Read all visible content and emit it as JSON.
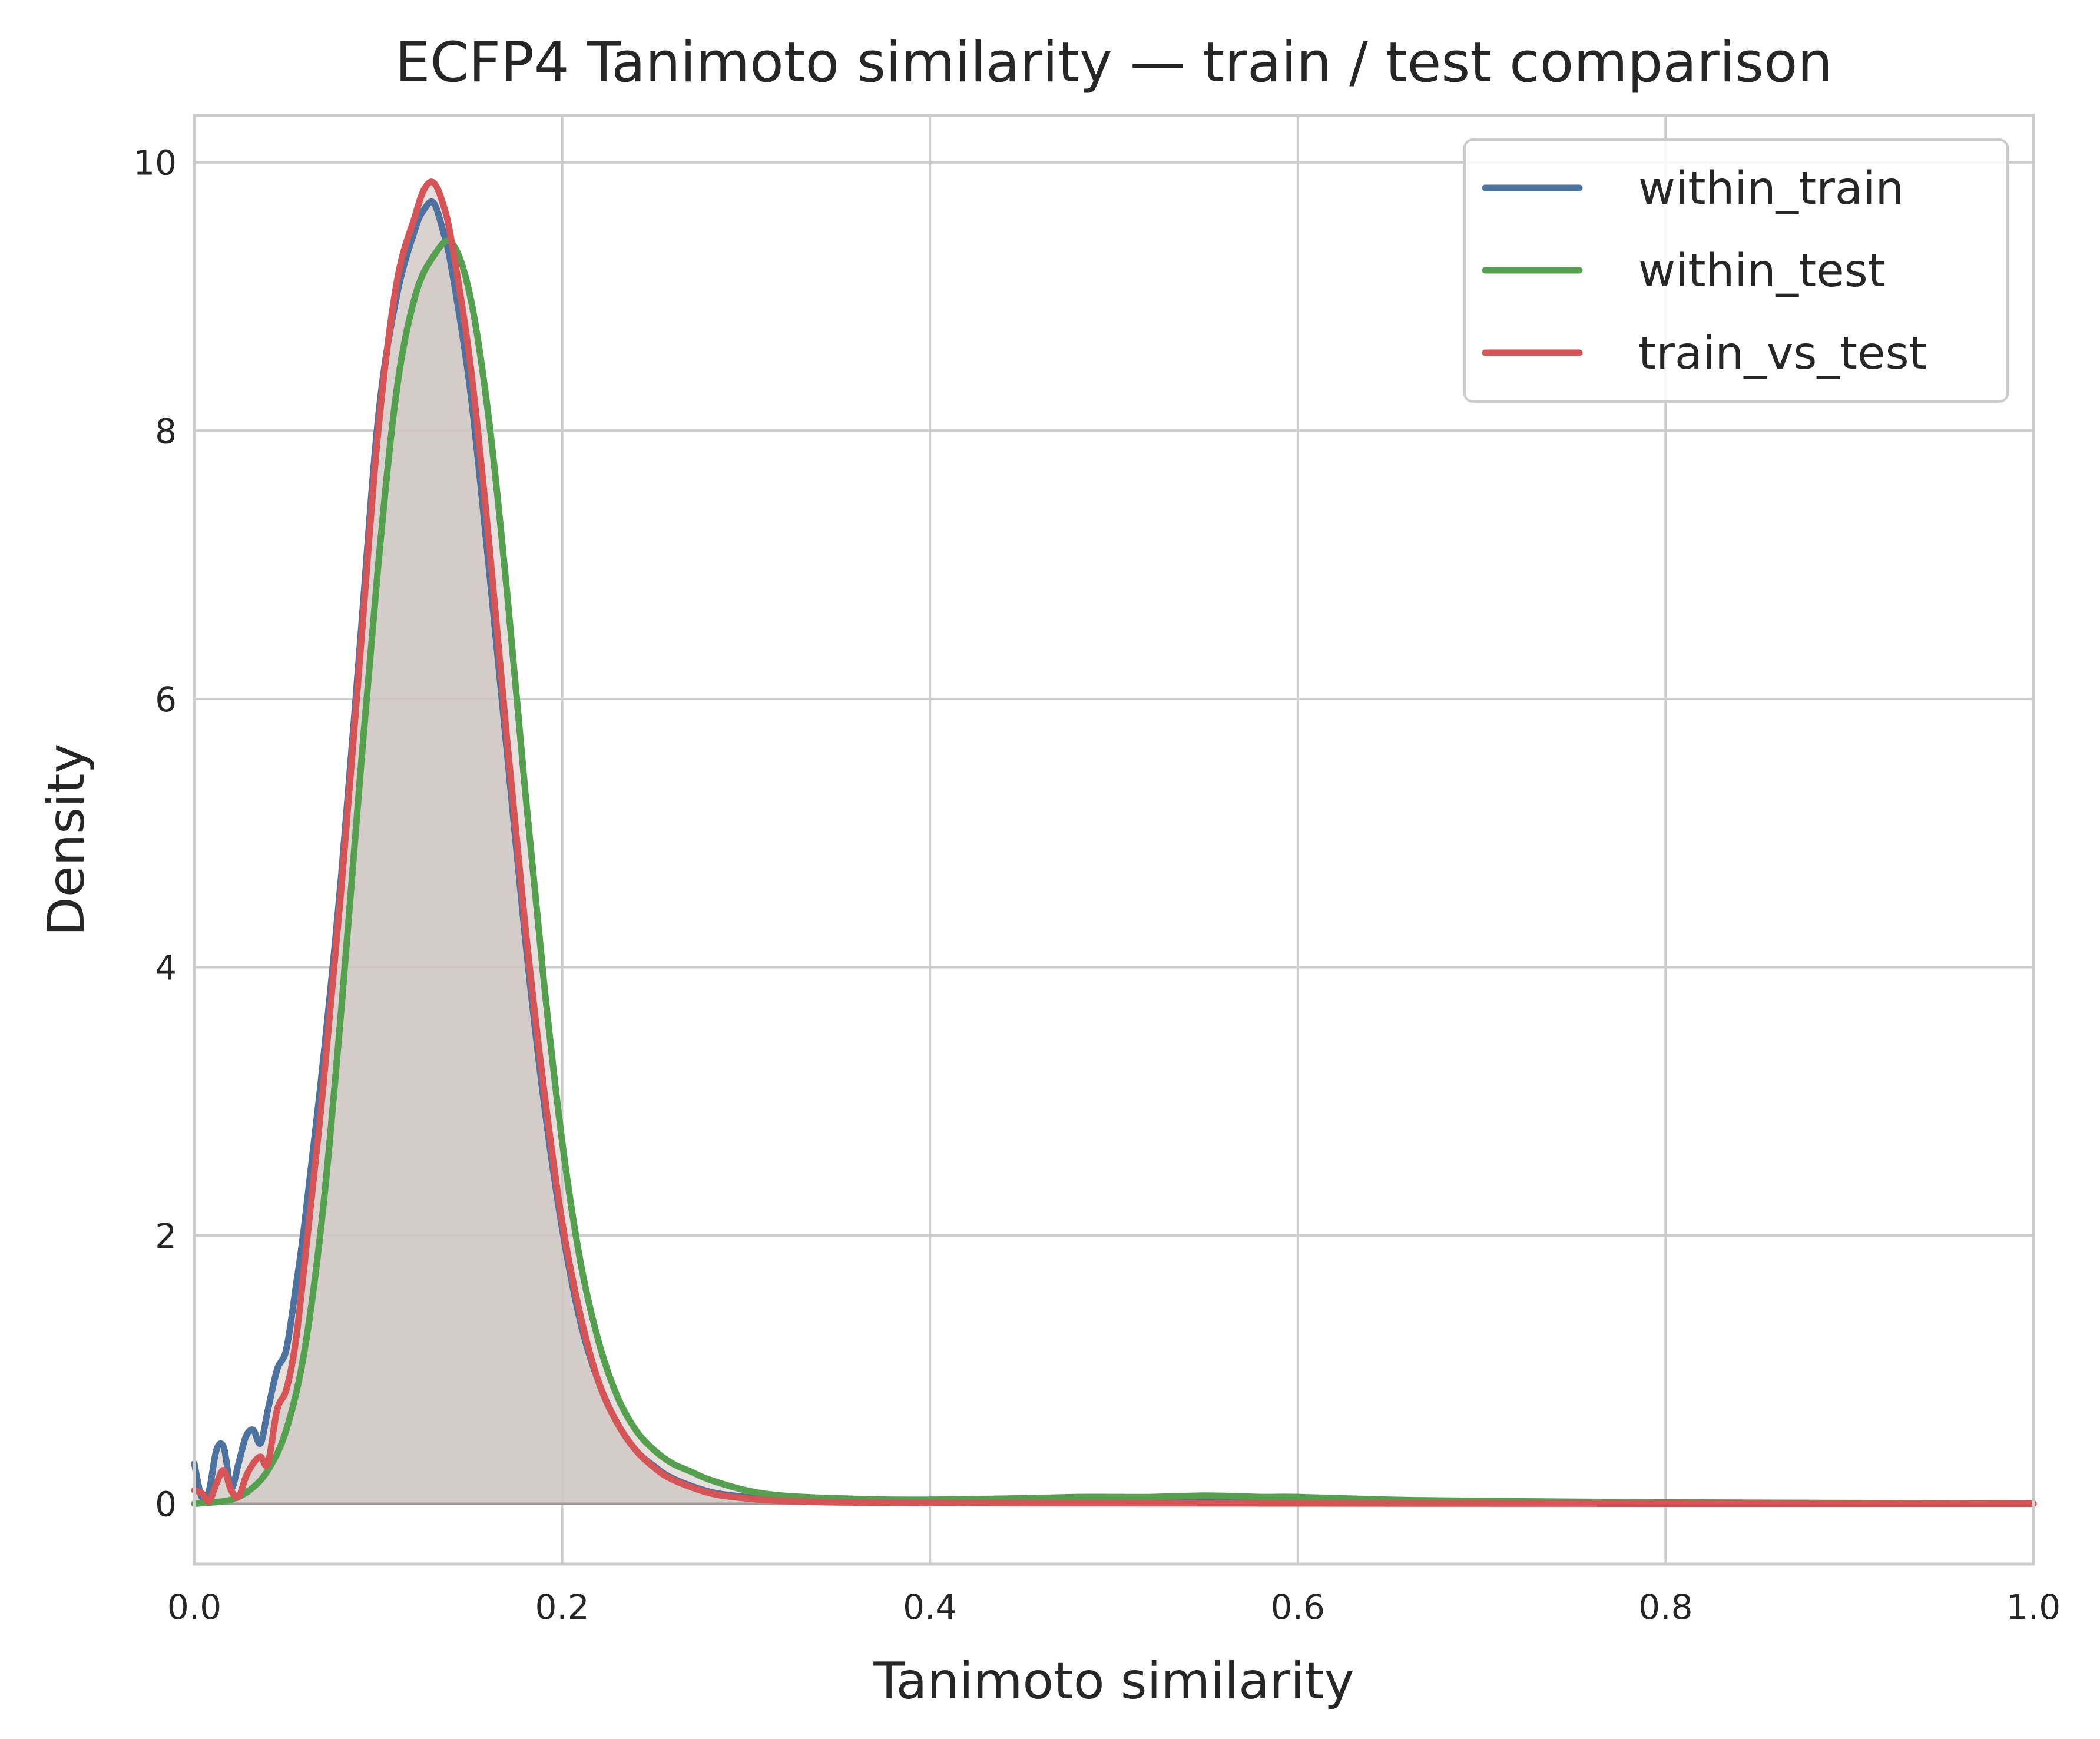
{
  "chart_data": {
    "type": "line",
    "title": "ECFP4 Tanimoto similarity — train / test comparison",
    "xlabel": "Tanimoto similarity",
    "ylabel": "Density",
    "xlim": [
      0.0,
      1.0
    ],
    "ylim": [
      -0.45,
      10.35
    ],
    "x_ticks": [
      0.0,
      0.2,
      0.4,
      0.6,
      0.8,
      1.0
    ],
    "x_tick_labels": [
      "0.0",
      "0.2",
      "0.4",
      "0.6",
      "0.8",
      "1.0"
    ],
    "y_ticks": [
      0,
      2,
      4,
      6,
      8,
      10
    ],
    "y_tick_labels": [
      "0",
      "2",
      "4",
      "6",
      "8",
      "10"
    ],
    "grid": true,
    "legend_position": "top-right",
    "fill_color": "#cfc7c2",
    "series": [
      {
        "name": "within_train",
        "color": "#4c72a0",
        "x": [
          0.0,
          0.004,
          0.008,
          0.012,
          0.016,
          0.02,
          0.024,
          0.028,
          0.032,
          0.036,
          0.04,
          0.045,
          0.05,
          0.055,
          0.06,
          0.07,
          0.08,
          0.09,
          0.1,
          0.11,
          0.12,
          0.125,
          0.13,
          0.135,
          0.14,
          0.15,
          0.16,
          0.17,
          0.18,
          0.19,
          0.2,
          0.21,
          0.22,
          0.23,
          0.24,
          0.25,
          0.26,
          0.28,
          0.3,
          0.32,
          0.35,
          0.4,
          0.5,
          0.6,
          0.7,
          0.8,
          0.9,
          1.0
        ],
        "y": [
          0.3,
          0.05,
          0.1,
          0.4,
          0.42,
          0.12,
          0.3,
          0.5,
          0.55,
          0.45,
          0.7,
          1.0,
          1.15,
          1.6,
          2.1,
          3.3,
          4.7,
          6.4,
          8.1,
          9.0,
          9.5,
          9.65,
          9.7,
          9.5,
          9.2,
          8.3,
          7.0,
          5.6,
          4.2,
          3.0,
          2.05,
          1.35,
          0.9,
          0.6,
          0.4,
          0.28,
          0.19,
          0.09,
          0.05,
          0.03,
          0.02,
          0.01,
          0.01,
          0.01,
          0.005,
          0.003,
          0.0,
          0.0
        ]
      },
      {
        "name": "within_test",
        "color": "#55a04f",
        "x": [
          0.0,
          0.01,
          0.02,
          0.03,
          0.04,
          0.05,
          0.06,
          0.07,
          0.08,
          0.09,
          0.1,
          0.11,
          0.12,
          0.13,
          0.14,
          0.15,
          0.16,
          0.17,
          0.18,
          0.19,
          0.2,
          0.21,
          0.22,
          0.23,
          0.24,
          0.25,
          0.26,
          0.27,
          0.28,
          0.3,
          0.32,
          0.35,
          0.38,
          0.4,
          0.45,
          0.48,
          0.5,
          0.52,
          0.55,
          0.58,
          0.6,
          0.65,
          0.7,
          0.8,
          0.9,
          1.0
        ],
        "y": [
          0.0,
          0.01,
          0.03,
          0.1,
          0.25,
          0.55,
          1.15,
          2.2,
          3.7,
          5.4,
          7.0,
          8.3,
          9.0,
          9.3,
          9.4,
          9.0,
          8.1,
          6.8,
          5.3,
          3.9,
          2.7,
          1.8,
          1.2,
          0.8,
          0.55,
          0.4,
          0.3,
          0.24,
          0.18,
          0.1,
          0.06,
          0.04,
          0.03,
          0.03,
          0.04,
          0.05,
          0.05,
          0.05,
          0.06,
          0.05,
          0.05,
          0.03,
          0.02,
          0.01,
          0.005,
          0.0
        ]
      },
      {
        "name": "train_vs_test",
        "color": "#d65455",
        "x": [
          0.0,
          0.004,
          0.008,
          0.012,
          0.016,
          0.02,
          0.024,
          0.028,
          0.032,
          0.036,
          0.04,
          0.045,
          0.05,
          0.055,
          0.06,
          0.07,
          0.08,
          0.09,
          0.1,
          0.11,
          0.12,
          0.125,
          0.13,
          0.135,
          0.14,
          0.15,
          0.16,
          0.17,
          0.18,
          0.19,
          0.2,
          0.21,
          0.22,
          0.23,
          0.24,
          0.25,
          0.26,
          0.28,
          0.3,
          0.32,
          0.35,
          0.4,
          0.5,
          0.6,
          0.7,
          0.8,
          0.9,
          1.0
        ],
        "y": [
          0.1,
          0.08,
          0.02,
          0.15,
          0.25,
          0.1,
          0.05,
          0.2,
          0.3,
          0.35,
          0.3,
          0.7,
          0.85,
          1.2,
          1.8,
          3.1,
          4.6,
          6.3,
          8.0,
          9.1,
          9.6,
          9.8,
          9.85,
          9.7,
          9.4,
          8.5,
          7.2,
          5.7,
          4.3,
          3.1,
          2.1,
          1.4,
          0.9,
          0.6,
          0.4,
          0.27,
          0.18,
          0.08,
          0.04,
          0.02,
          0.01,
          0.005,
          0.003,
          0.002,
          0.001,
          0.0,
          0.0,
          0.0
        ]
      }
    ]
  }
}
